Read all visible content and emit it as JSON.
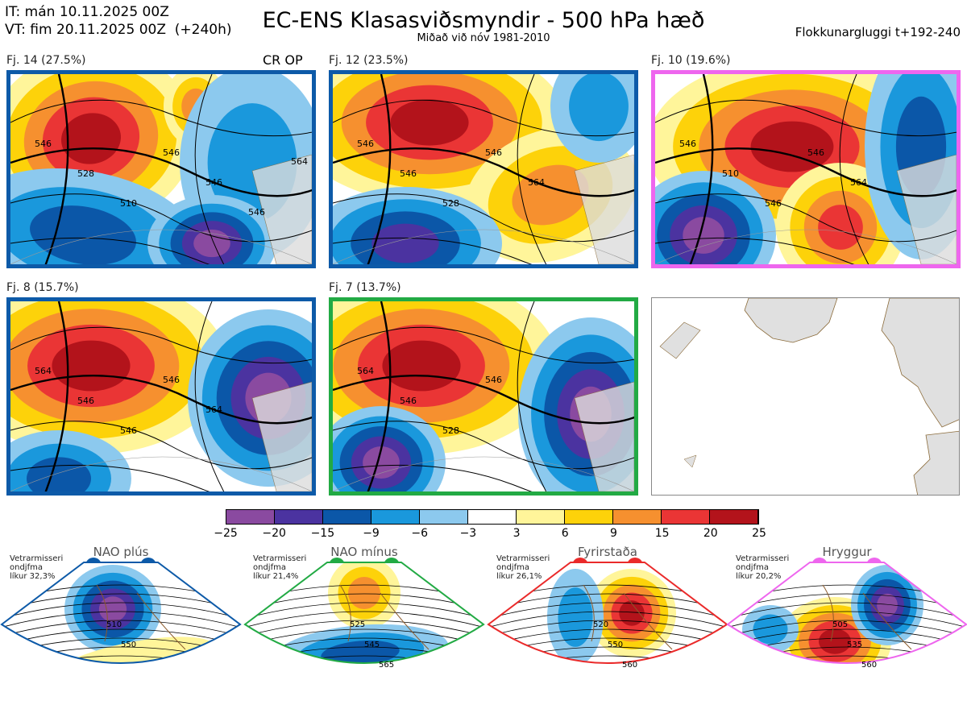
{
  "header": {
    "it": "IT: mán 10.11.2025 00Z",
    "vt_label": "VT: fim 20.11.2025 00Z",
    "vt_lead": "(+240h)",
    "title": "EC-ENS Klasasviðsmyndir - 500 hPa hæð",
    "subtitle": "Miðað við nóv 1981-2010",
    "window": "Flokkunargluggi t+192-240"
  },
  "panels": [
    {
      "label": "Fj. 14 (27.5%)",
      "border": "#0d5aa8",
      "tag": "CR OP",
      "contours": [
        "546",
        "528",
        "510",
        "546",
        "546",
        "546",
        "564"
      ]
    },
    {
      "label": "Fj. 12 (23.5%)",
      "border": "#0d5aa8",
      "tag": "",
      "contours": [
        "546",
        "546",
        "528",
        "546",
        "564"
      ]
    },
    {
      "label": "Fj. 10 (19.6%)",
      "border": "#ee66ee",
      "tag": "",
      "contours": [
        "546",
        "510",
        "546",
        "546",
        "564"
      ]
    },
    {
      "label": "Fj. 8 (15.7%)",
      "border": "#0d5aa8",
      "tag": "",
      "contours": [
        "564",
        "546",
        "546",
        "546",
        "564"
      ]
    },
    {
      "label": "Fj. 7 (13.7%)",
      "border": "#22aa44",
      "tag": "",
      "contours": [
        "564",
        "546",
        "528",
        "546"
      ]
    }
  ],
  "colorbar": {
    "colors": [
      "#8a4aa0",
      "#4b33a0",
      "#0b57a8",
      "#1a98dc",
      "#8cc9ee",
      "#ffffff",
      "#fff59a",
      "#fdd20a",
      "#f6902f",
      "#ea3535",
      "#b3131b"
    ],
    "ticks": [
      "−25",
      "−20",
      "−15",
      "−9",
      "−6",
      "−3",
      "3",
      "6",
      "9",
      "15",
      "20",
      "25"
    ]
  },
  "regimes": [
    {
      "title": "NAO plús",
      "info": [
        "Vetrarmisseri",
        "ondjfma",
        "líkur 32,3%"
      ],
      "color": "#0d5aa8",
      "contours": [
        "510",
        "550"
      ]
    },
    {
      "title": "NAO mínus",
      "info": [
        "Vetrarmisseri",
        "ondjfma",
        "líkur 21,4%"
      ],
      "color": "#22aa44",
      "contours": [
        "525",
        "545",
        "565"
      ]
    },
    {
      "title": "Fyrirstaða",
      "info": [
        "Vetrarmisseri",
        "ondjfma",
        "líkur 26,1%"
      ],
      "color": "#ea2a2a",
      "contours": [
        "520",
        "550",
        "560"
      ]
    },
    {
      "title": "Hryggur",
      "info": [
        "Vetrarmisseri",
        "ondjfma",
        "líkur 20,2%"
      ],
      "color": "#ee66ee",
      "contours": [
        "505",
        "535",
        "560"
      ]
    }
  ]
}
